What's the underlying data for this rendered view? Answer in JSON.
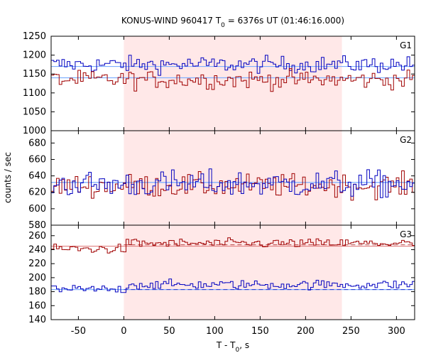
{
  "chart_data": {
    "type": "line",
    "title_prefix": "KONUS-WIND 960417 T",
    "title_sub": "0",
    "title_suffix": " = 6376s UT (01:46:16.000)",
    "xlabel_prefix": "T - T",
    "xlabel_sub": "0",
    "xlabel_suffix": ", s",
    "ylabel": "counts / sec",
    "xlim": [
      -80,
      320
    ],
    "x_ticks": [
      -50,
      0,
      50,
      100,
      150,
      200,
      250,
      300
    ],
    "shaded_interval": [
      0,
      240
    ],
    "bin_seconds": 2.944,
    "colors": {
      "red": "#a00000",
      "blue": "#0000c0",
      "background_fit": "#80b0ff",
      "red_dashed": "#e08080",
      "shade": "#ffe8e8"
    },
    "panels": [
      {
        "label": "G1",
        "ylim": [
          1000,
          1250
        ],
        "y_ticks": [
          1000,
          1050,
          1100,
          1150,
          1200,
          1250
        ],
        "series": [
          {
            "color": "blue",
            "mean": 1175,
            "noise": 20,
            "x": [
              -80,
              320
            ],
            "background_level": 1170
          },
          {
            "color": "red",
            "mean": 1135,
            "noise": 22,
            "x": [
              -80,
              320
            ],
            "background_level": 1140
          }
        ]
      },
      {
        "label": "G2",
        "ylim": [
          580,
          695
        ],
        "y_ticks": [
          580,
          600,
          620,
          640,
          660,
          680
        ],
        "series": [
          {
            "color": "red",
            "mean": 628,
            "noise": 13,
            "x": [
              -80,
              320
            ],
            "background_level": 632
          },
          {
            "color": "blue",
            "mean": 630,
            "noise": 15,
            "x": [
              -80,
              320
            ],
            "background_level": 632
          }
        ]
      },
      {
        "label": "G3",
        "ylim": [
          140,
          275
        ],
        "y_ticks": [
          140,
          160,
          180,
          200,
          220,
          240,
          260
        ],
        "series": [
          {
            "color": "red",
            "pre_mean": 241,
            "post_mean": 249,
            "noise": 6,
            "x": [
              -80,
              320
            ],
            "background_level": 245,
            "dashed": true
          },
          {
            "color": "blue",
            "pre_mean": 183,
            "post_mean": 190,
            "noise": 6,
            "x": [
              -80,
              320
            ],
            "background_level": 183,
            "dashed": true
          }
        ]
      }
    ]
  }
}
